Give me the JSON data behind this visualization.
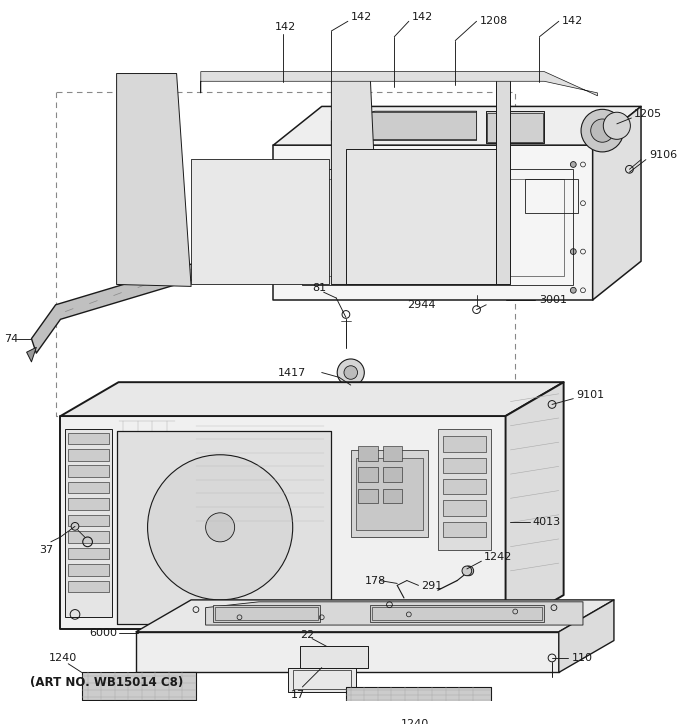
{
  "bg_color": "#ffffff",
  "line_color": "#1a1a1a",
  "art_no": "(ART NO. WB15014 C8)",
  "fig_w": 6.8,
  "fig_h": 7.24,
  "dpi": 100
}
